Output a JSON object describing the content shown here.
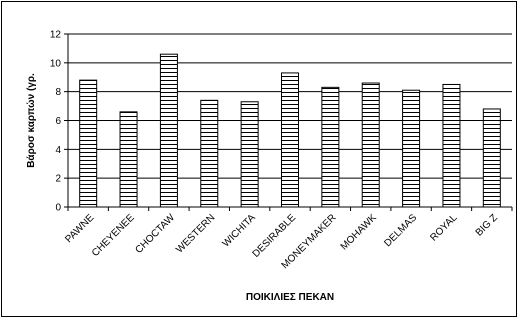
{
  "chart_data": {
    "type": "bar",
    "title": "",
    "xlabel": "ΠΟΙΚΙΛΙΕΣ ΠΕΚΑΝ",
    "ylabel": "Βάροσ καρπών (γρ.",
    "ylim": [
      0,
      12
    ],
    "yticks": [
      "0",
      "2",
      "4",
      "6",
      "8",
      "10",
      "12"
    ],
    "grid": true,
    "legend": "none",
    "categories": [
      "PAWNE",
      "CHEYENEE",
      "CHOCTAW",
      "WESTERN",
      "WICHITA",
      "DESIRABLE",
      "MONEYMAKER",
      "MOHAWK",
      "DELMAS",
      "ROYAL",
      "BIG Z"
    ],
    "values": [
      8.8,
      6.6,
      10.6,
      7.4,
      7.3,
      9.3,
      8.3,
      8.6,
      8.1,
      8.5,
      6.8
    ],
    "bar_fill_pattern": "horizontal-stripes",
    "colors": {
      "bar_fill": "#ffffff",
      "bar_stripe": "#000000",
      "grid": "#000000"
    }
  }
}
